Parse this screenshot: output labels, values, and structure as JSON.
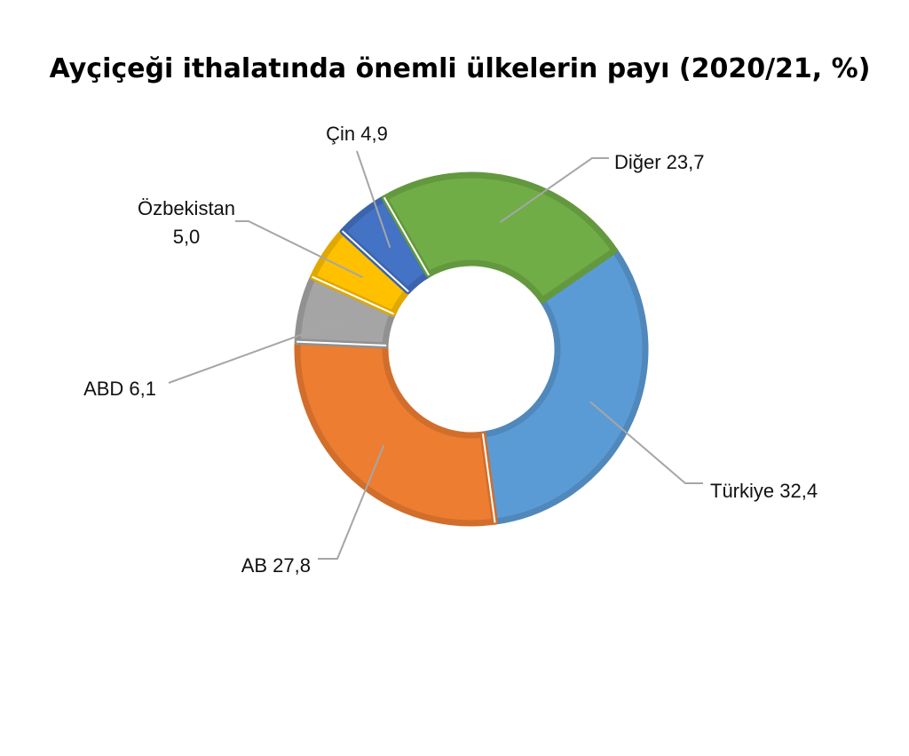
{
  "chart_data": {
    "type": "pie",
    "variant": "donut",
    "title": "Ayçiçeği ithalatında önemli ülkelerin payı (2020/21, %)",
    "slices": [
      {
        "label": "Türkiye",
        "value": 32.4,
        "value_text": "32,4",
        "color": "#5b9bd5"
      },
      {
        "label": "AB",
        "value": 27.8,
        "value_text": "27,8",
        "color": "#ed7d31"
      },
      {
        "label": "ABD",
        "value": 6.1,
        "value_text": "6,1",
        "color": "#a5a5a5"
      },
      {
        "label": "Özbekistan",
        "value": 5.0,
        "value_text": "5,0",
        "color": "#ffc000"
      },
      {
        "label": "Çin",
        "value": 4.9,
        "value_text": "4,9",
        "color": "#4472c4"
      },
      {
        "label": "Diğer",
        "value": 23.7,
        "value_text": "23,7",
        "color": "#70ad47"
      }
    ],
    "legend": "none",
    "data_labels": "outside with leader lines"
  }
}
